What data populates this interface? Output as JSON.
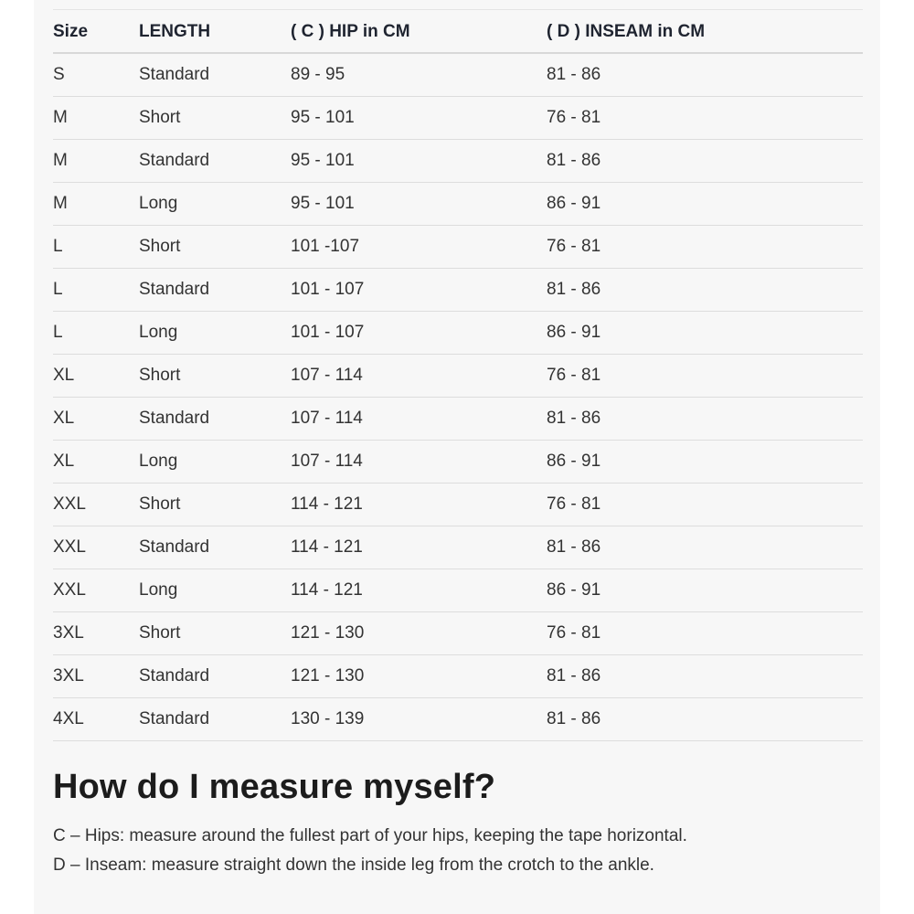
{
  "colors": {
    "panel_background": "#f7f7f7",
    "page_margin": "#ffffff",
    "row_border": "#dddddd",
    "header_border": "#d8d8d8",
    "text": "#333333",
    "header_text": "#1f2430"
  },
  "size_chart": {
    "column_keys": [
      "size",
      "length",
      "hip",
      "inseam"
    ],
    "columns": [
      "Size",
      "LENGTH",
      "( C ) HIP in CM",
      "( D ) INSEAM in CM"
    ],
    "rows": [
      {
        "size": "S",
        "length": "Standard",
        "hip": "89 - 95",
        "inseam": "81 - 86"
      },
      {
        "size": "M",
        "length": "Short",
        "hip": "95 - 101",
        "inseam": "76 - 81"
      },
      {
        "size": "M",
        "length": "Standard",
        "hip": "95 - 101",
        "inseam": "81 - 86"
      },
      {
        "size": "M",
        "length": "Long",
        "hip": "95 - 101",
        "inseam": "86 - 91"
      },
      {
        "size": "L",
        "length": "Short",
        "hip": "101 -107",
        "inseam": "76 - 81"
      },
      {
        "size": "L",
        "length": "Standard",
        "hip": "101 - 107",
        "inseam": "81 - 86"
      },
      {
        "size": "L",
        "length": "Long",
        "hip": "101 - 107",
        "inseam": "86 - 91"
      },
      {
        "size": "XL",
        "length": "Short",
        "hip": "107 - 114",
        "inseam": "76 - 81"
      },
      {
        "size": "XL",
        "length": "Standard",
        "hip": "107 - 114",
        "inseam": "81 - 86"
      },
      {
        "size": "XL",
        "length": "Long",
        "hip": "107 - 114",
        "inseam": "86 - 91"
      },
      {
        "size": "XXL",
        "length": "Short",
        "hip": "114 - 121",
        "inseam": "76 - 81"
      },
      {
        "size": "XXL",
        "length": "Standard",
        "hip": "114 - 121",
        "inseam": "81 - 86"
      },
      {
        "size": "XXL",
        "length": "Long",
        "hip": "114 - 121",
        "inseam": "86 - 91"
      },
      {
        "size": "3XL",
        "length": "Short",
        "hip": "121 - 130",
        "inseam": "76 - 81"
      },
      {
        "size": "3XL",
        "length": "Standard",
        "hip": "121 - 130",
        "inseam": "81 - 86"
      },
      {
        "size": "4XL",
        "length": "Standard",
        "hip": "130 - 139",
        "inseam": "81 - 86"
      }
    ]
  },
  "measure_section": {
    "heading": "How do I measure myself?",
    "lines": [
      "C – Hips: measure around the fullest part of your hips, keeping the tape horizontal.",
      "D – Inseam: measure straight down the inside leg from the crotch to the ankle."
    ]
  }
}
